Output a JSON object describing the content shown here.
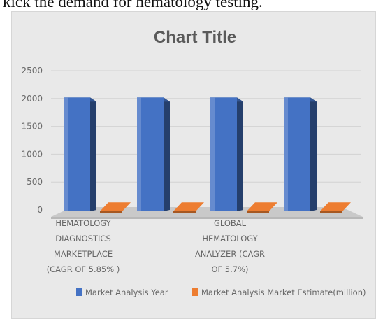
{
  "page": {
    "top_text": "kick the demand for hematology testing."
  },
  "chart_data": {
    "type": "bar",
    "title": "Chart Title",
    "xlabel": "",
    "ylabel": "",
    "ylim": [
      0,
      2500
    ],
    "yticks": [
      0,
      500,
      1000,
      1500,
      2000,
      2500
    ],
    "grid": true,
    "three_d": true,
    "legend_position": "bottom",
    "categories": [
      [
        "HEMATOLOGY",
        "DIAGNOSTICS",
        "MARKETPLACE",
        "(CAGR OF 5.85% )"
      ],
      [],
      [
        "GLOBAL",
        "HEMATOLOGY",
        "ANALYZER (CAGR",
        "OF 5.7%)"
      ],
      []
    ],
    "series": [
      {
        "name": "Market Analysis Year",
        "color": "#4472c4",
        "values": [
          2018,
          2018,
          2018,
          2018
        ]
      },
      {
        "name": "Market Analysis Market Estimate(million)",
        "color": "#ed7d31",
        "values": [
          8,
          8,
          8,
          8
        ]
      }
    ]
  }
}
